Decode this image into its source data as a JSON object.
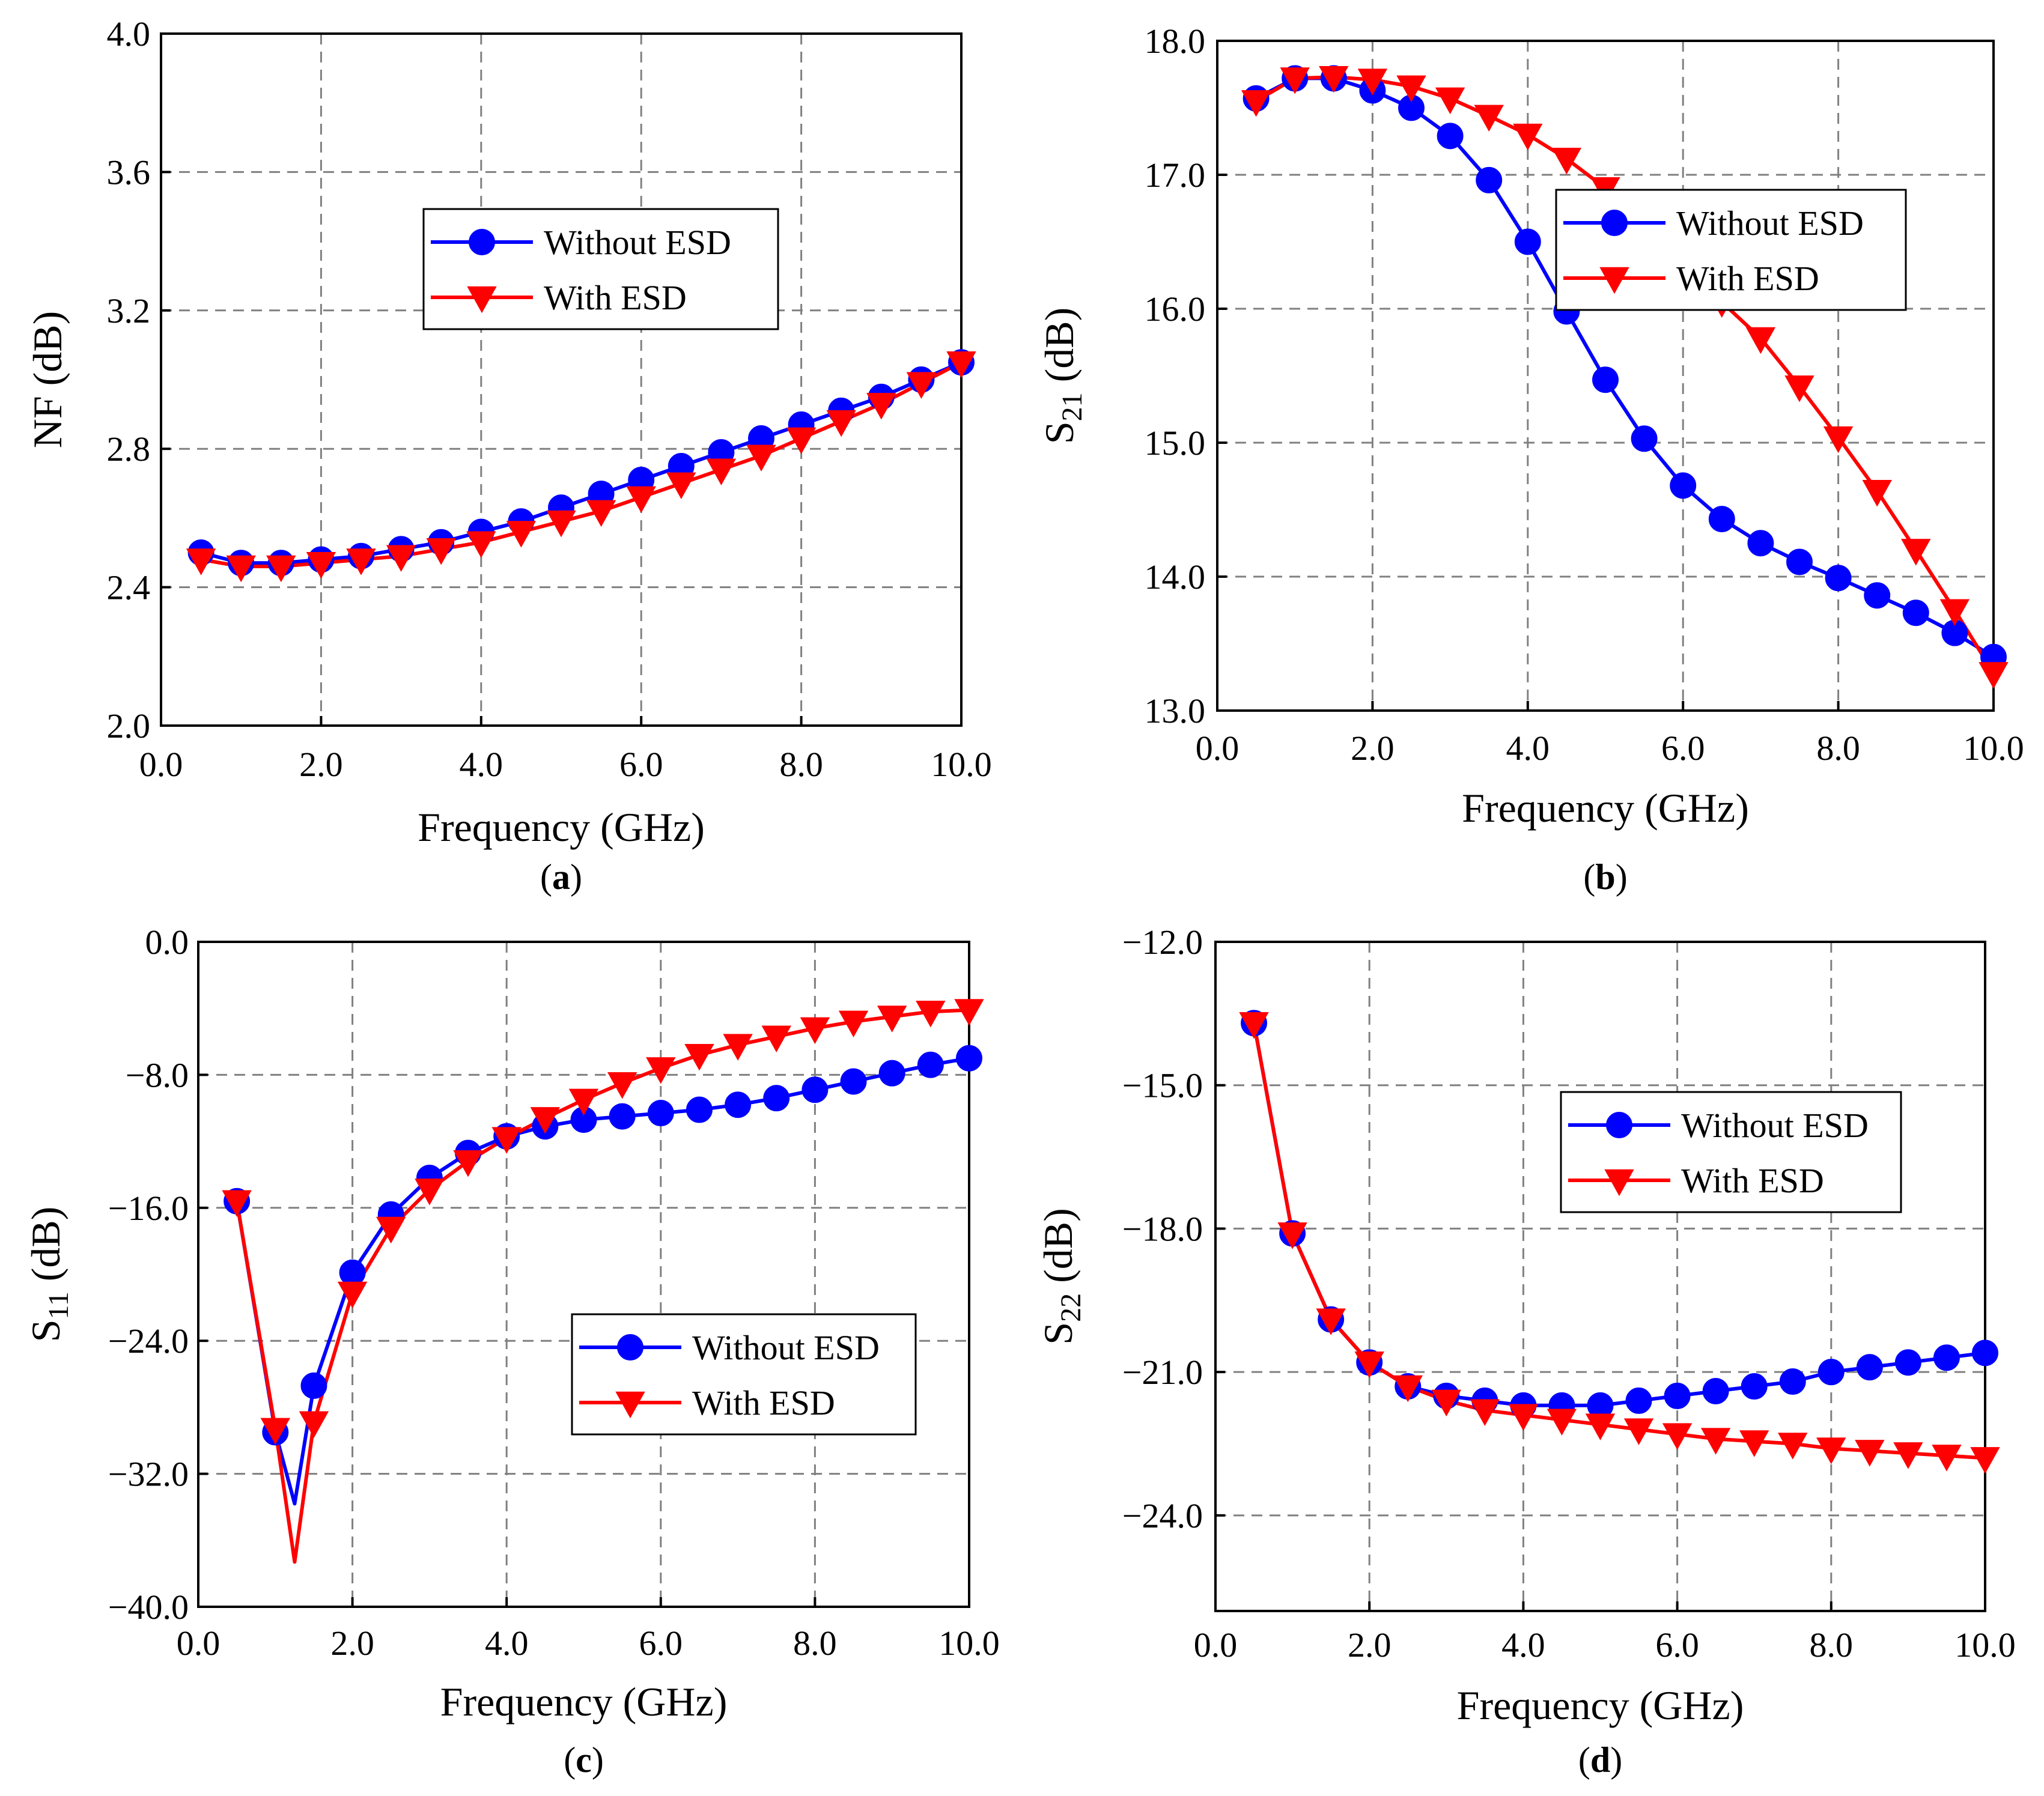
{
  "colors": {
    "without_esd": "#0000FF",
    "with_esd": "#FF0000",
    "grid": "#808080",
    "axis": "#000000"
  },
  "charts": [
    {
      "caption": "a",
      "chart_data": {
        "type": "line",
        "xlabel": "Frequency (GHz)",
        "ylabel": "NF (dB)",
        "ylabel_sub": "",
        "xlim": [
          0.0,
          10.0
        ],
        "ylim": [
          2.0,
          4.0
        ],
        "xticks": [
          "0.0",
          "2.0",
          "4.0",
          "6.0",
          "8.0",
          "10.0"
        ],
        "yticks": [
          "2.0",
          "2.4",
          "2.8",
          "3.2",
          "3.6",
          "4.0"
        ],
        "legend": {
          "position": "upper-center",
          "entries": [
            "Without ESD",
            "With ESD"
          ]
        },
        "x": [
          0.5,
          1.0,
          1.5,
          2.0,
          2.5,
          3.0,
          3.5,
          4.0,
          4.5,
          5.0,
          5.5,
          6.0,
          6.5,
          7.0,
          7.5,
          8.0,
          8.5,
          9.0,
          9.5,
          10.0
        ],
        "series": [
          {
            "name": "Without ESD",
            "marker": "circle",
            "values": [
              2.5,
              2.47,
              2.47,
              2.48,
              2.49,
              2.51,
              2.53,
              2.56,
              2.59,
              2.63,
              2.67,
              2.71,
              2.75,
              2.79,
              2.83,
              2.87,
              2.91,
              2.95,
              3.0,
              3.05
            ]
          },
          {
            "name": "With ESD",
            "marker": "triangle-down",
            "values": [
              2.48,
              2.46,
              2.46,
              2.47,
              2.48,
              2.49,
              2.51,
              2.53,
              2.56,
              2.59,
              2.62,
              2.66,
              2.7,
              2.74,
              2.78,
              2.83,
              2.88,
              2.93,
              2.99,
              3.05
            ]
          }
        ]
      }
    },
    {
      "caption": "b",
      "chart_data": {
        "type": "line",
        "xlabel": "Frequency (GHz)",
        "ylabel": "S",
        "ylabel_sub": "21",
        "ylabel_unit": " (dB)",
        "xlim": [
          0.0,
          10.0
        ],
        "ylim": [
          13.0,
          18.0
        ],
        "xticks": [
          "0.0",
          "2.0",
          "4.0",
          "6.0",
          "8.0",
          "10.0"
        ],
        "yticks": [
          "13.0",
          "14.0",
          "15.0",
          "16.0",
          "17.0",
          "18.0"
        ],
        "legend": {
          "position": "upper-right",
          "entries": [
            "Without ESD",
            "With ESD"
          ]
        },
        "x": [
          0.5,
          1.0,
          1.5,
          2.0,
          2.5,
          3.0,
          3.5,
          4.0,
          4.5,
          5.0,
          5.5,
          6.0,
          6.5,
          7.0,
          7.5,
          8.0,
          8.5,
          9.0,
          9.5,
          10.0
        ],
        "series": [
          {
            "name": "Without ESD",
            "marker": "circle",
            "values": [
              17.57,
              17.72,
              17.72,
              17.63,
              17.5,
              17.29,
              16.96,
              16.5,
              15.98,
              15.47,
              15.03,
              14.68,
              14.43,
              14.25,
              14.11,
              13.99,
              13.86,
              13.73,
              13.58,
              13.4
            ]
          },
          {
            "name": "With ESD",
            "marker": "triangle-down",
            "values": [
              17.55,
              17.72,
              17.73,
              17.71,
              17.66,
              17.57,
              17.44,
              17.3,
              17.12,
              16.9,
              16.63,
              16.3,
              16.05,
              15.78,
              15.42,
              15.04,
              14.64,
              14.2,
              13.75,
              13.28
            ]
          }
        ]
      }
    },
    {
      "caption": "c",
      "chart_data": {
        "type": "line",
        "xlabel": "Frequency (GHz)",
        "ylabel": "S",
        "ylabel_sub": "11",
        "ylabel_unit": " (dB)",
        "xlim": [
          0.0,
          10.0
        ],
        "ylim": [
          -40.0,
          0.0
        ],
        "xticks": [
          "0.0",
          "2.0",
          "4.0",
          "6.0",
          "8.0",
          "10.0"
        ],
        "yticks": [
          "−40.0",
          "−32.0",
          "−24.0",
          "−16.0",
          "−8.0",
          "0.0"
        ],
        "legend": {
          "position": "lower-right",
          "entries": [
            "Without ESD",
            "With ESD"
          ]
        },
        "x": [
          0.5,
          1.0,
          1.5,
          2.0,
          2.5,
          3.0,
          3.5,
          4.0,
          4.5,
          5.0,
          5.5,
          6.0,
          6.5,
          7.0,
          7.5,
          8.0,
          8.5,
          9.0,
          9.5,
          10.0
        ],
        "series": [
          {
            "name": "Without ESD",
            "marker": "circle",
            "values": [
              -15.6,
              -29.5,
              -26.7,
              -19.9,
              -16.4,
              -14.2,
              -12.7,
              -11.7,
              -11.1,
              -10.7,
              -10.5,
              -10.3,
              -10.1,
              -9.8,
              -9.4,
              -8.9,
              -8.4,
              -7.9,
              -7.4,
              -7.0
            ]
          },
          {
            "name": "With ESD",
            "marker": "triangle-down",
            "values": [
              -15.6,
              -29.3,
              -28.9,
              -21.1,
              -17.2,
              -14.9,
              -13.2,
              -11.8,
              -10.6,
              -9.5,
              -8.5,
              -7.6,
              -6.8,
              -6.2,
              -5.7,
              -5.2,
              -4.8,
              -4.5,
              -4.2,
              -4.1
            ]
          }
        ],
        "lines": [
          {
            "name": "Without ESD",
            "x": [
              0.5,
              1.0,
              1.25,
              1.5,
              2.0,
              2.5,
              3.0,
              3.5,
              4.0,
              4.5,
              5.0,
              5.5,
              6.0,
              6.5,
              7.0,
              7.5,
              8.0,
              8.5,
              9.0,
              9.5,
              10.0
            ],
            "values": [
              -15.6,
              -29.5,
              -33.8,
              -26.7,
              -19.9,
              -16.4,
              -14.2,
              -12.7,
              -11.7,
              -11.1,
              -10.7,
              -10.5,
              -10.3,
              -10.1,
              -9.8,
              -9.4,
              -8.9,
              -8.4,
              -7.9,
              -7.4,
              -7.0
            ]
          },
          {
            "name": "With ESD",
            "x": [
              0.5,
              1.0,
              1.25,
              1.5,
              2.0,
              2.5,
              3.0,
              3.5,
              4.0,
              4.5,
              5.0,
              5.5,
              6.0,
              6.5,
              7.0,
              7.5,
              8.0,
              8.5,
              9.0,
              9.5,
              10.0
            ],
            "values": [
              -15.6,
              -29.3,
              -37.3,
              -28.9,
              -21.1,
              -17.2,
              -14.9,
              -13.2,
              -11.8,
              -10.6,
              -9.5,
              -8.5,
              -7.6,
              -6.8,
              -6.2,
              -5.7,
              -5.2,
              -4.8,
              -4.5,
              -4.2,
              -4.1
            ]
          }
        ]
      }
    },
    {
      "caption": "d",
      "chart_data": {
        "type": "line",
        "xlabel": "Frequency (GHz)",
        "ylabel": "S",
        "ylabel_sub": "22",
        "ylabel_unit": " (dB)",
        "xlim": [
          0.0,
          10.0
        ],
        "ylim": [
          -26.0,
          -12.0
        ],
        "xticks": [
          "0.0",
          "2.0",
          "4.0",
          "6.0",
          "8.0",
          "10.0"
        ],
        "yticks": [
          "−24.0",
          "−21.0",
          "−18.0",
          "−15.0",
          "−12.0"
        ],
        "ytick_values": [
          -24.0,
          -21.0,
          -18.0,
          -15.0,
          -12.0
        ],
        "legend": {
          "position": "upper-right",
          "entries": [
            "Without ESD",
            "With ESD"
          ]
        },
        "x": [
          0.5,
          1.0,
          1.5,
          2.0,
          2.5,
          3.0,
          3.5,
          4.0,
          4.5,
          5.0,
          5.5,
          6.0,
          6.5,
          7.0,
          7.5,
          8.0,
          8.5,
          9.0,
          9.5,
          10.0
        ],
        "series": [
          {
            "name": "Without ESD",
            "marker": "circle",
            "values": [
              -13.7,
              -18.1,
              -19.9,
              -20.8,
              -21.3,
              -21.5,
              -21.6,
              -21.7,
              -21.7,
              -21.7,
              -21.6,
              -21.5,
              -21.4,
              -21.3,
              -21.2,
              -21.0,
              -20.9,
              -20.8,
              -20.7,
              -20.6
            ]
          },
          {
            "name": "With ESD",
            "marker": "triangle-down",
            "values": [
              -13.7,
              -18.1,
              -19.9,
              -20.8,
              -21.3,
              -21.6,
              -21.8,
              -21.9,
              -22.0,
              -22.1,
              -22.2,
              -22.3,
              -22.4,
              -22.45,
              -22.5,
              -22.6,
              -22.65,
              -22.7,
              -22.75,
              -22.8
            ]
          }
        ]
      }
    }
  ]
}
